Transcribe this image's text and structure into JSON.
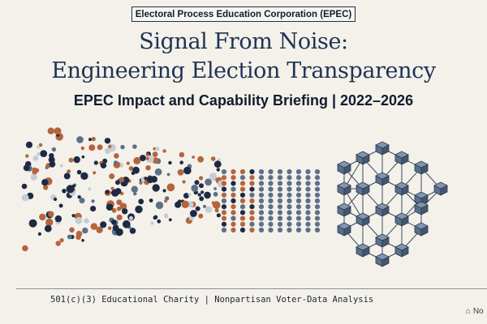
{
  "header": {
    "org_name": "Electoral Process Education Corporation (EPEC)"
  },
  "title": {
    "line1": "Signal From Noise:",
    "line2": "Engineering Election Transparency"
  },
  "subtitle": "EPEC Impact and Capability Briefing | 2022–2026",
  "footer": {
    "text": "501(c)(3) Educational Charity | Nonpartisan Voter-Data Analysis",
    "corner_text": "No"
  },
  "colors": {
    "navy": "#1e2a44",
    "orange": "#b5643e",
    "slate": "#5c7089",
    "light": "#c6ccd3",
    "background": "#f3f1ea"
  },
  "illustration": {
    "icon": "noise-to-signal-network-icon"
  }
}
